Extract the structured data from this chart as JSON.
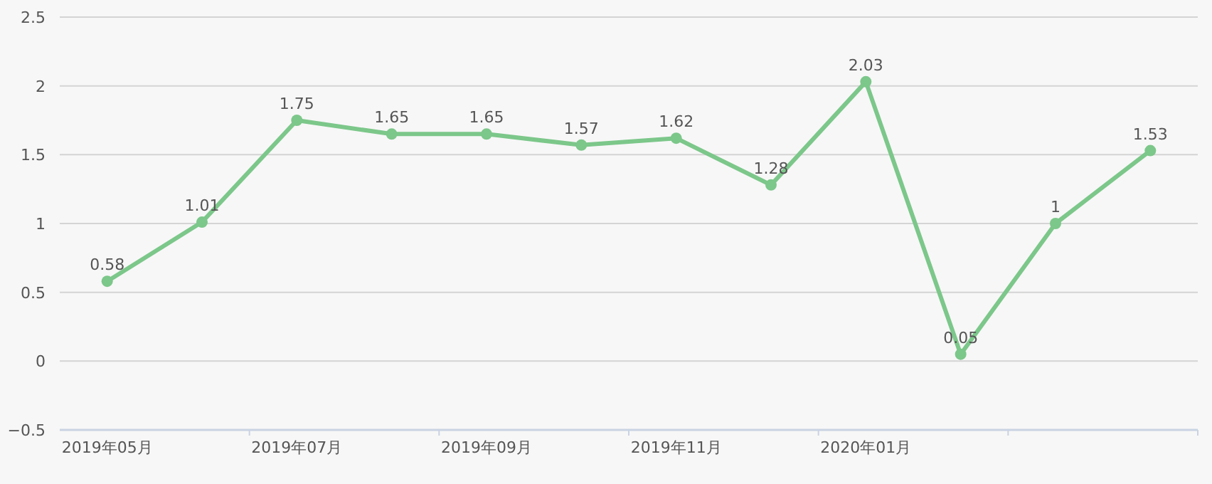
{
  "chart_data": {
    "type": "line",
    "categories": [
      "2019年05月",
      null,
      "2019年07月",
      null,
      "2019年09月",
      null,
      "2019年11月",
      null,
      "2020年01月",
      null,
      null,
      null
    ],
    "series": [
      {
        "color": "#7cc78a",
        "values": [
          0.58,
          1.01,
          1.75,
          1.65,
          1.65,
          1.57,
          1.62,
          1.28,
          2.03,
          0.05,
          1,
          1.53
        ]
      }
    ],
    "ylim": [
      -0.5,
      2.5
    ],
    "yticks": [
      {
        "value": -0.5,
        "label": "−0.5"
      },
      0,
      0.5,
      1,
      1.5,
      2,
      2.5
    ],
    "grid": "y",
    "marker": "circle",
    "data_labels": true
  }
}
